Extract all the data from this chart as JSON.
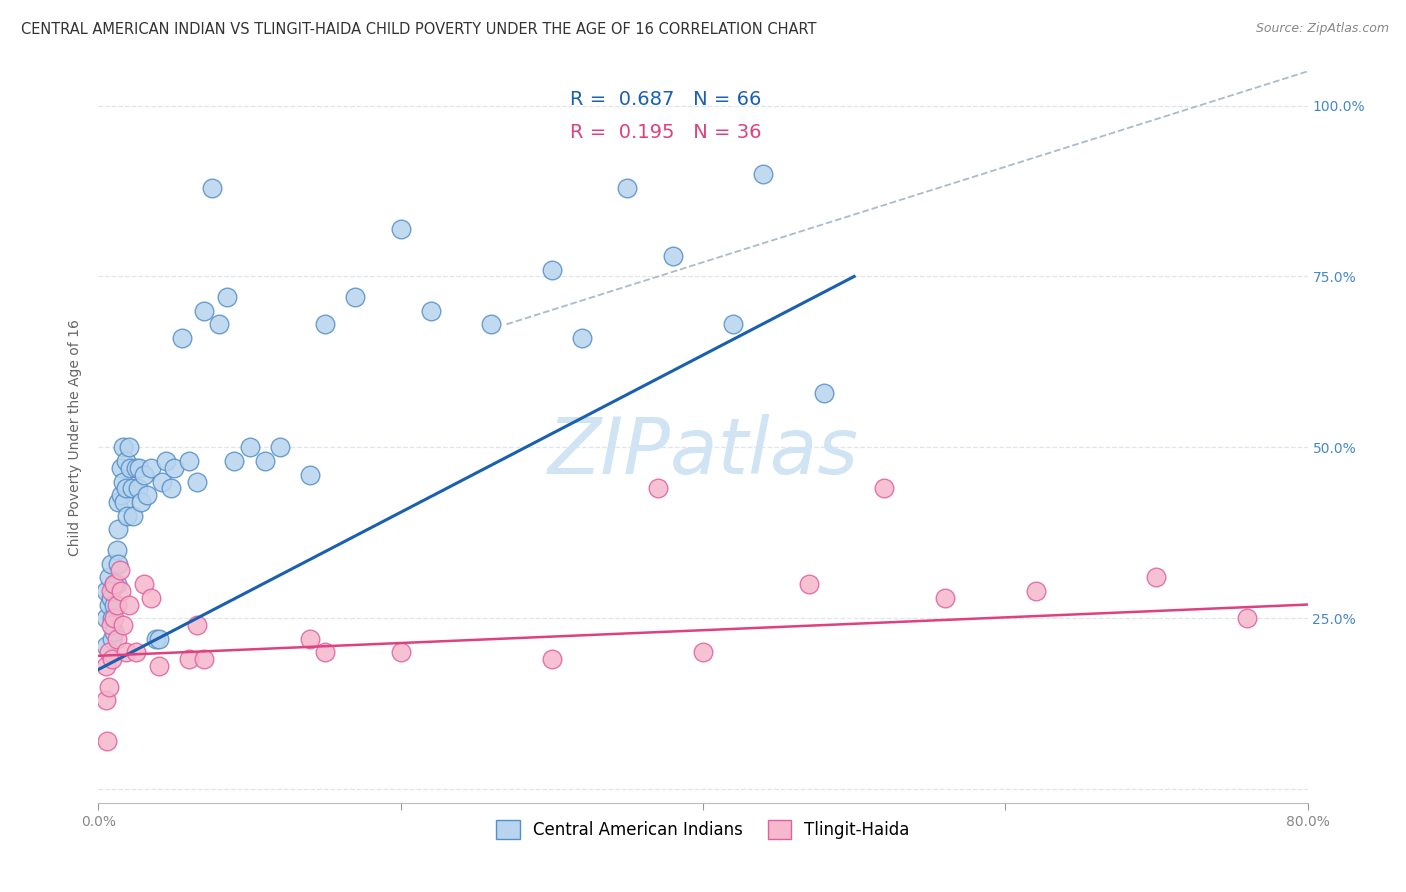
{
  "title": "CENTRAL AMERICAN INDIAN VS TLINGIT-HAIDA CHILD POVERTY UNDER THE AGE OF 16 CORRELATION CHART",
  "source": "Source: ZipAtlas.com",
  "ylabel": "Child Poverty Under the Age of 16",
  "xlim": [
    0.0,
    0.8
  ],
  "ylim": [
    -0.02,
    1.05
  ],
  "blue_R": "0.687",
  "blue_N": "66",
  "pink_R": "0.195",
  "pink_N": "36",
  "blue_fill_color": "#b8d4ee",
  "pink_fill_color": "#f5b8cc",
  "blue_edge_color": "#5590c8",
  "pink_edge_color": "#e060a0",
  "blue_line_color": "#1a60b0",
  "pink_line_color": "#e04080",
  "dashed_line_color": "#aabbcc",
  "watermark_color": "#d0e4f4",
  "background_color": "#ffffff",
  "grid_color": "#e0e4ee",
  "title_fontsize": 10.5,
  "tick_fontsize": 10,
  "legend_fontsize": 13,
  "blue_scatter_x": [
    0.005,
    0.005,
    0.005,
    0.007,
    0.007,
    0.008,
    0.008,
    0.009,
    0.009,
    0.01,
    0.01,
    0.01,
    0.012,
    0.012,
    0.013,
    0.013,
    0.013,
    0.015,
    0.015,
    0.016,
    0.016,
    0.017,
    0.018,
    0.018,
    0.019,
    0.02,
    0.021,
    0.022,
    0.023,
    0.025,
    0.026,
    0.027,
    0.028,
    0.03,
    0.032,
    0.035,
    0.038,
    0.04,
    0.042,
    0.045,
    0.048,
    0.05,
    0.055,
    0.06,
    0.065,
    0.07,
    0.075,
    0.08,
    0.085,
    0.09,
    0.1,
    0.11,
    0.12,
    0.14,
    0.15,
    0.17,
    0.2,
    0.22,
    0.26,
    0.3,
    0.32,
    0.35,
    0.38,
    0.42,
    0.44,
    0.48
  ],
  "blue_scatter_y": [
    0.29,
    0.25,
    0.21,
    0.31,
    0.27,
    0.33,
    0.28,
    0.25,
    0.22,
    0.3,
    0.27,
    0.23,
    0.35,
    0.3,
    0.42,
    0.38,
    0.33,
    0.47,
    0.43,
    0.5,
    0.45,
    0.42,
    0.48,
    0.44,
    0.4,
    0.5,
    0.47,
    0.44,
    0.4,
    0.47,
    0.44,
    0.47,
    0.42,
    0.46,
    0.43,
    0.47,
    0.22,
    0.22,
    0.45,
    0.48,
    0.44,
    0.47,
    0.66,
    0.48,
    0.45,
    0.7,
    0.88,
    0.68,
    0.72,
    0.48,
    0.5,
    0.48,
    0.5,
    0.46,
    0.68,
    0.72,
    0.82,
    0.7,
    0.68,
    0.76,
    0.66,
    0.88,
    0.78,
    0.68,
    0.9,
    0.58
  ],
  "pink_scatter_x": [
    0.005,
    0.005,
    0.006,
    0.007,
    0.007,
    0.008,
    0.008,
    0.009,
    0.01,
    0.01,
    0.012,
    0.012,
    0.014,
    0.015,
    0.016,
    0.018,
    0.02,
    0.025,
    0.03,
    0.035,
    0.04,
    0.06,
    0.065,
    0.07,
    0.14,
    0.15,
    0.2,
    0.3,
    0.37,
    0.4,
    0.47,
    0.52,
    0.56,
    0.62,
    0.7,
    0.76
  ],
  "pink_scatter_y": [
    0.18,
    0.13,
    0.07,
    0.2,
    0.15,
    0.29,
    0.24,
    0.19,
    0.3,
    0.25,
    0.27,
    0.22,
    0.32,
    0.29,
    0.24,
    0.2,
    0.27,
    0.2,
    0.3,
    0.28,
    0.18,
    0.19,
    0.24,
    0.19,
    0.22,
    0.2,
    0.2,
    0.19,
    0.44,
    0.2,
    0.3,
    0.44,
    0.28,
    0.29,
    0.31,
    0.25
  ],
  "blue_line_x0": 0.0,
  "blue_line_y0": 0.175,
  "blue_line_x1": 0.5,
  "blue_line_y1": 0.75,
  "pink_line_x0": 0.0,
  "pink_line_y0": 0.195,
  "pink_line_x1": 0.8,
  "pink_line_y1": 0.27,
  "dash_line_x0": 0.27,
  "dash_line_y0": 0.68,
  "dash_line_x1": 0.8,
  "dash_line_y1": 1.05
}
